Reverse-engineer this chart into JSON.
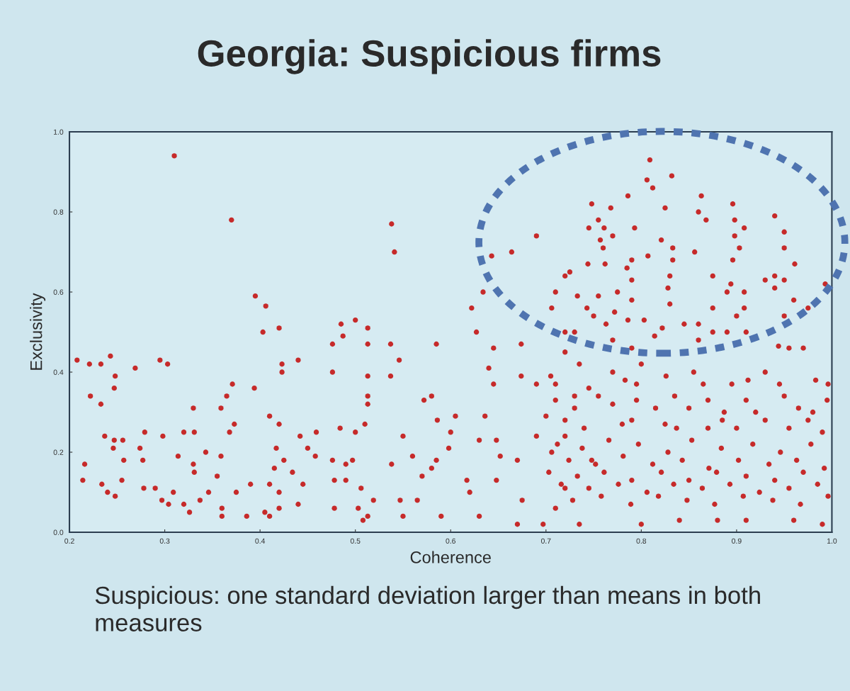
{
  "chart_data": {
    "type": "scatter",
    "title": "Georgia: Suspicious firms",
    "xlabel": "Coherence",
    "ylabel": "Exclusivity",
    "annotations": [
      "Suspicious: one standard deviation larger than means in both measures"
    ],
    "marker": "circle",
    "xlim": [
      0.2,
      1.0
    ],
    "ylim": [
      0.0,
      1.0
    ],
    "xticks": [
      0.2,
      0.3,
      0.4,
      0.5,
      0.6,
      0.7,
      0.8,
      0.9,
      {
        "value": 1,
        "label": "1.0"
      }
    ],
    "yticks": [
      {
        "value": 0,
        "label": "0.0"
      },
      0.2,
      0.4,
      0.6,
      0.8,
      {
        "value": 1,
        "label": "1.0"
      }
    ],
    "x": [
      0.31,
      0.37,
      0.395,
      0.406,
      0.403,
      0.42,
      0.423,
      0.423,
      0.394,
      0.208,
      0.221,
      0.233,
      0.243,
      0.248,
      0.247,
      0.269,
      0.295,
      0.303,
      0.222,
      0.233,
      0.33,
      0.359,
      0.365,
      0.371,
      0.373,
      0.368,
      0.41,
      0.42,
      0.237,
      0.247,
      0.256,
      0.246,
      0.279,
      0.274,
      0.277,
      0.298,
      0.32,
      0.331,
      0.314,
      0.33,
      0.331,
      0.343,
      0.359,
      0.355,
      0.216,
      0.214,
      0.257,
      0.255,
      0.234,
      0.24,
      0.248,
      0.278,
      0.29,
      0.297,
      0.304,
      0.309,
      0.32,
      0.326,
      0.337,
      0.346,
      0.36,
      0.36,
      0.375,
      0.39,
      0.386,
      0.405,
      0.41,
      0.41,
      0.415,
      0.417,
      0.425,
      0.42,
      0.42,
      0.434,
      0.538,
      0.541,
      0.69,
      0.664,
      0.643,
      0.622,
      0.627,
      0.634,
      0.485,
      0.5,
      0.513,
      0.476,
      0.487,
      0.476,
      0.513,
      0.513,
      0.537,
      0.537,
      0.546,
      0.585,
      0.44,
      0.513,
      0.513,
      0.58,
      0.572,
      0.674,
      0.674,
      0.69,
      0.705,
      0.645,
      0.64,
      0.645,
      0.706,
      0.725,
      0.442,
      0.459,
      0.484,
      0.45,
      0.458,
      0.51,
      0.5,
      0.476,
      0.49,
      0.497,
      0.445,
      0.478,
      0.49,
      0.506,
      0.44,
      0.478,
      0.508,
      0.503,
      0.519,
      0.538,
      0.55,
      0.56,
      0.57,
      0.547,
      0.565,
      0.513,
      0.55,
      0.59,
      0.586,
      0.605,
      0.6,
      0.598,
      0.585,
      0.58,
      0.63,
      0.636,
      0.617,
      0.62,
      0.63,
      0.67,
      0.648,
      0.652,
      0.648,
      0.67,
      0.69,
      0.675,
      0.697,
      0.71,
      0.72,
      0.706,
      0.72,
      0.748,
      0.7,
      0.73,
      0.809,
      0.806,
      0.832,
      0.812,
      0.786,
      0.863,
      0.896,
      0.748,
      0.768,
      0.825,
      0.86,
      0.94,
      0.755,
      0.868,
      0.898,
      0.745,
      0.761,
      0.793,
      0.908,
      0.95,
      0.77,
      0.757,
      0.821,
      0.833,
      0.856,
      0.903,
      0.898,
      0.95,
      0.76,
      0.744,
      0.762,
      0.79,
      0.785,
      0.79,
      0.807,
      0.833,
      0.83,
      0.828,
      0.875,
      0.896,
      0.961,
      0.94,
      0.95,
      0.93,
      0.72,
      0.894,
      0.89,
      0.993,
      0.94,
      0.908,
      0.71,
      0.733,
      0.743,
      0.755,
      0.775,
      0.79,
      0.75,
      0.763,
      0.772,
      0.786,
      0.803,
      0.814,
      0.822,
      0.83,
      0.875,
      0.9,
      0.908,
      0.91,
      0.96,
      0.975,
      0.95,
      0.72,
      0.73,
      0.72,
      0.845,
      0.86,
      0.875,
      0.89,
      0.86,
      0.77,
      0.79,
      0.944,
      0.955,
      0.97,
      0.735,
      0.77,
      0.8,
      0.71,
      0.745,
      0.783,
      0.795,
      0.826,
      0.855,
      0.865,
      0.895,
      0.912,
      0.93,
      0.945,
      0.983,
      0.996,
      0.71,
      0.73,
      0.755,
      0.77,
      0.795,
      0.815,
      0.835,
      0.85,
      0.87,
      0.887,
      0.91,
      0.92,
      0.95,
      0.965,
      0.98,
      0.995,
      0.72,
      0.74,
      0.78,
      0.79,
      0.825,
      0.837,
      0.87,
      0.885,
      0.9,
      0.93,
      0.955,
      0.975,
      0.99,
      0.712,
      0.738,
      0.766,
      0.797,
      0.828,
      0.853,
      0.884,
      0.917,
      0.946,
      0.978,
      0.724,
      0.752,
      0.781,
      0.812,
      0.843,
      0.871,
      0.902,
      0.934,
      0.963,
      0.992,
      0.703,
      0.733,
      0.761,
      0.79,
      0.821,
      0.85,
      0.879,
      0.91,
      0.94,
      0.97,
      0.716,
      0.745,
      0.776,
      0.806,
      0.834,
      0.864,
      0.893,
      0.924,
      0.955,
      0.985,
      0.728,
      0.758,
      0.789,
      0.818,
      0.848,
      0.877,
      0.907,
      0.938,
      0.967,
      0.996,
      0.735,
      0.8,
      0.84,
      0.88,
      0.91,
      0.96,
      0.99
    ],
    "series": [
      {
        "color": "#c62a2a",
        "values": [
          0.94,
          0.78,
          0.59,
          0.565,
          0.5,
          0.51,
          0.42,
          0.4,
          0.36,
          0.43,
          0.42,
          0.42,
          0.44,
          0.39,
          0.36,
          0.41,
          0.43,
          0.42,
          0.34,
          0.32,
          0.31,
          0.31,
          0.34,
          0.37,
          0.27,
          0.25,
          0.29,
          0.27,
          0.24,
          0.23,
          0.23,
          0.21,
          0.25,
          0.21,
          0.18,
          0.24,
          0.25,
          0.25,
          0.19,
          0.17,
          0.15,
          0.2,
          0.19,
          0.14,
          0.17,
          0.13,
          0.18,
          0.13,
          0.12,
          0.1,
          0.09,
          0.11,
          0.11,
          0.08,
          0.07,
          0.1,
          0.07,
          0.05,
          0.08,
          0.1,
          0.06,
          0.04,
          0.1,
          0.12,
          0.04,
          0.05,
          0.04,
          0.12,
          0.16,
          0.21,
          0.18,
          0.1,
          0.06,
          0.15,
          0.77,
          0.7,
          0.74,
          0.7,
          0.69,
          0.56,
          0.5,
          0.6,
          0.52,
          0.53,
          0.51,
          0.47,
          0.49,
          0.4,
          0.47,
          0.39,
          0.47,
          0.39,
          0.43,
          0.47,
          0.43,
          0.34,
          0.32,
          0.34,
          0.33,
          0.47,
          0.39,
          0.37,
          0.39,
          0.46,
          0.41,
          0.37,
          0.56,
          0.65,
          0.24,
          0.25,
          0.26,
          0.21,
          0.19,
          0.27,
          0.25,
          0.18,
          0.17,
          0.18,
          0.12,
          0.13,
          0.13,
          0.11,
          0.07,
          0.06,
          0.03,
          0.06,
          0.08,
          0.17,
          0.24,
          0.19,
          0.14,
          0.08,
          0.08,
          0.04,
          0.04,
          0.04,
          0.28,
          0.29,
          0.25,
          0.21,
          0.18,
          0.16,
          0.23,
          0.29,
          0.13,
          0.1,
          0.04,
          0.02,
          0.23,
          0.19,
          0.13,
          0.18,
          0.24,
          0.08,
          0.02,
          0.06,
          0.11,
          0.2,
          0.24,
          0.18,
          0.29,
          0.31,
          0.93,
          0.88,
          0.89,
          0.86,
          0.84,
          0.84,
          0.82,
          0.82,
          0.81,
          0.81,
          0.8,
          0.79,
          0.78,
          0.78,
          0.78,
          0.76,
          0.76,
          0.76,
          0.76,
          0.75,
          0.74,
          0.73,
          0.73,
          0.71,
          0.7,
          0.71,
          0.74,
          0.71,
          0.71,
          0.67,
          0.67,
          0.68,
          0.66,
          0.63,
          0.69,
          0.68,
          0.64,
          0.61,
          0.64,
          0.68,
          0.67,
          0.64,
          0.63,
          0.63,
          0.64,
          0.62,
          0.6,
          0.62,
          0.61,
          0.6,
          0.6,
          0.59,
          0.56,
          0.59,
          0.6,
          0.58,
          0.54,
          0.52,
          0.55,
          0.53,
          0.53,
          0.49,
          0.51,
          0.57,
          0.56,
          0.54,
          0.56,
          0.5,
          0.58,
          0.56,
          0.54,
          0.5,
          0.5,
          0.45,
          0.52,
          0.52,
          0.5,
          0.5,
          0.48,
          0.48,
          0.46,
          0.465,
          0.46,
          0.46,
          0.42,
          0.4,
          0.42,
          0.37,
          0.36,
          0.38,
          0.37,
          0.39,
          0.4,
          0.37,
          0.37,
          0.38,
          0.4,
          0.37,
          0.38,
          0.37,
          0.33,
          0.34,
          0.34,
          0.32,
          0.33,
          0.31,
          0.34,
          0.31,
          0.33,
          0.3,
          0.33,
          0.3,
          0.34,
          0.31,
          0.3,
          0.33,
          0.28,
          0.26,
          0.27,
          0.28,
          0.27,
          0.26,
          0.26,
          0.28,
          0.26,
          0.28,
          0.26,
          0.28,
          0.25,
          0.22,
          0.21,
          0.23,
          0.22,
          0.2,
          0.23,
          0.21,
          0.22,
          0.2,
          0.22,
          0.18,
          0.17,
          0.19,
          0.17,
          0.18,
          0.16,
          0.18,
          0.17,
          0.18,
          0.16,
          0.15,
          0.14,
          0.15,
          0.13,
          0.15,
          0.13,
          0.15,
          0.14,
          0.13,
          0.15,
          0.12,
          0.11,
          0.12,
          0.1,
          0.12,
          0.11,
          0.12,
          0.1,
          0.11,
          0.12,
          0.08,
          0.09,
          0.07,
          0.09,
          0.08,
          0.07,
          0.09,
          0.08,
          0.07,
          0.09,
          0.02,
          0.02,
          0.03,
          0.03,
          0.03,
          0.03,
          0.02
        ]
      }
    ]
  }
}
